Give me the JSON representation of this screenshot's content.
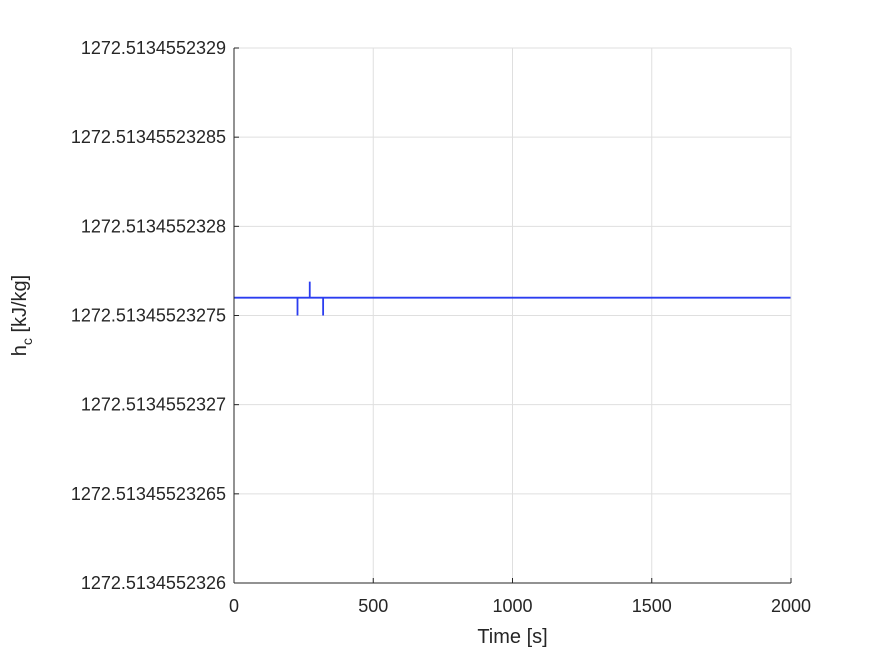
{
  "chart_data": {
    "type": "line",
    "title": "",
    "xlabel": "Time [s]",
    "ylabel_main": "h",
    "ylabel_sub": "c",
    "ylabel_unit": " [kJ/kg]",
    "xlim": [
      0,
      2000
    ],
    "ylim": [
      0,
      6
    ],
    "x_ticks": [
      {
        "value": 0,
        "label": "0"
      },
      {
        "value": 500,
        "label": "500"
      },
      {
        "value": 1000,
        "label": "1000"
      },
      {
        "value": 1500,
        "label": "1500"
      },
      {
        "value": 2000,
        "label": "2000"
      }
    ],
    "y_ticks": [
      {
        "value": 6,
        "label": "1272.5134552329"
      },
      {
        "value": 5,
        "label": "1272.51345523285"
      },
      {
        "value": 4,
        "label": "1272.5134552328"
      },
      {
        "value": 3,
        "label": "1272.51345523275"
      },
      {
        "value": 2,
        "label": "1272.5134552327"
      },
      {
        "value": 1,
        "label": "1272.51345523265"
      },
      {
        "value": 0,
        "label": "1272.5134552326"
      }
    ],
    "grid": true,
    "series": [
      {
        "name": "h_c",
        "color": "#2b3df0",
        "x": [
          0,
          228,
          228,
          228,
          272,
          272,
          272,
          320,
          320,
          320,
          2000
        ],
        "y": [
          3.2,
          3.2,
          3.0,
          3.2,
          3.2,
          3.38,
          3.2,
          3.2,
          3.0,
          3.2,
          3.2
        ]
      }
    ]
  }
}
